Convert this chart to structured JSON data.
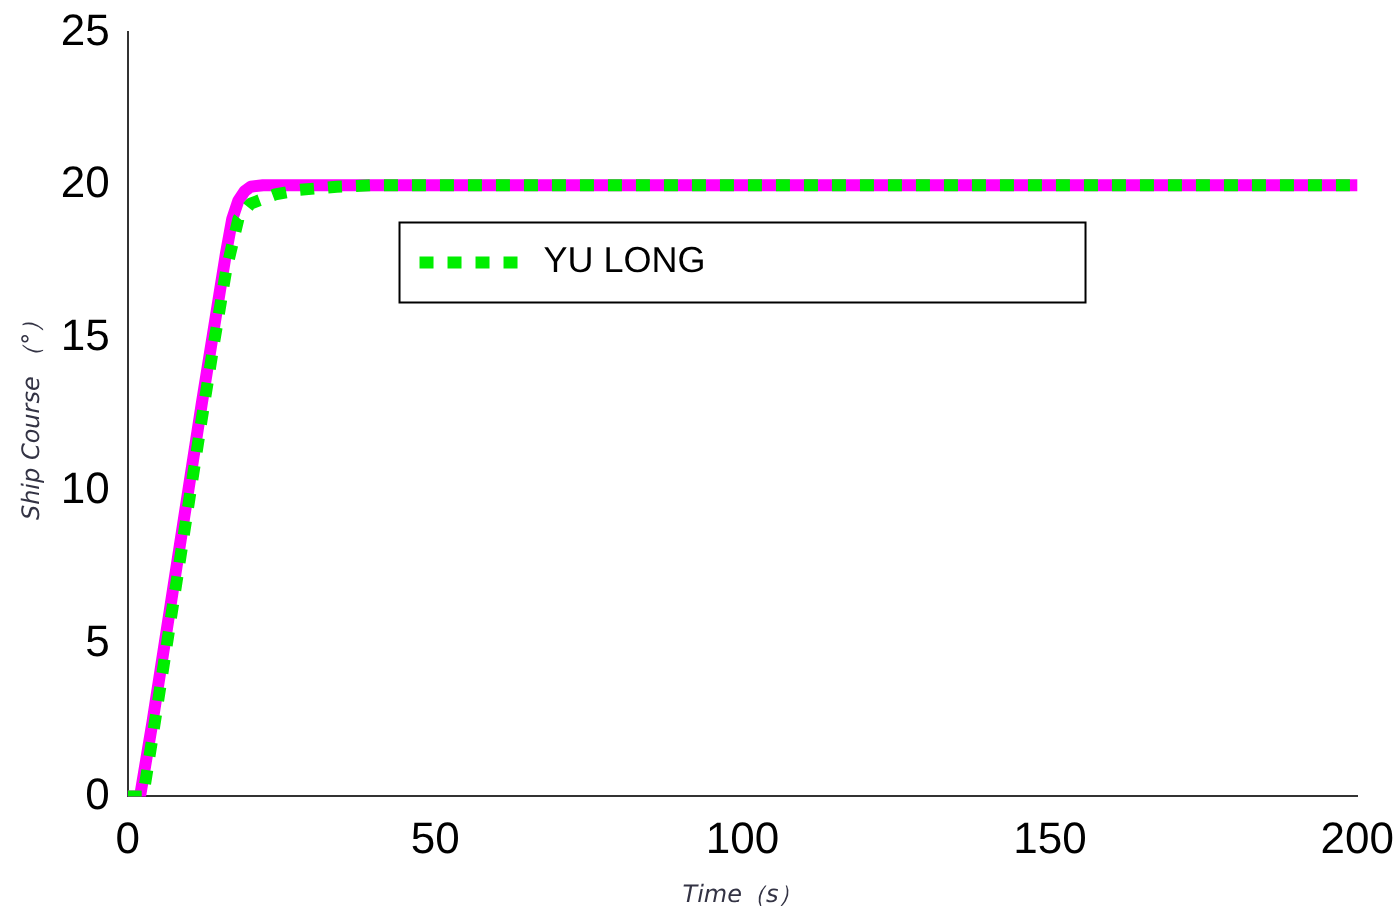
{
  "chart_data": {
    "type": "line",
    "xlabel": "Time（s）",
    "ylabel": "Ship Course （°）",
    "xlim": [
      0,
      200
    ],
    "xticks": [
      0,
      50,
      100,
      150,
      200
    ],
    "ylim": [
      0,
      25
    ],
    "yticks": [
      0,
      5,
      10,
      15,
      20,
      25
    ],
    "grid": false,
    "legend": "top",
    "marker": "none",
    "series": [
      {
        "color": "#ff00ff",
        "line_style": "solid",
        "x": [
          0,
          2,
          4,
          6,
          8,
          10,
          12,
          14,
          16,
          17,
          18,
          19,
          20,
          22,
          25,
          30,
          50,
          100,
          150,
          200
        ],
        "values": [
          0,
          0,
          2.4,
          5,
          7.6,
          10.2,
          12.8,
          15.3,
          17.8,
          18.9,
          19.5,
          19.8,
          19.95,
          20,
          20,
          20,
          20,
          20,
          20,
          20
        ]
      },
      {
        "name": "YU LONG",
        "color": "#00ee00",
        "line_style": "dotted",
        "x": [
          0,
          2.5,
          4,
          6,
          8,
          10,
          12,
          14,
          16,
          18,
          20,
          24,
          28,
          34,
          40,
          50,
          100,
          150,
          200
        ],
        "values": [
          0,
          0,
          1.9,
          4.5,
          7.1,
          9.7,
          12.3,
          14.8,
          17.2,
          18.9,
          19.4,
          19.7,
          19.85,
          19.95,
          20,
          20,
          20,
          20,
          20
        ]
      }
    ]
  }
}
